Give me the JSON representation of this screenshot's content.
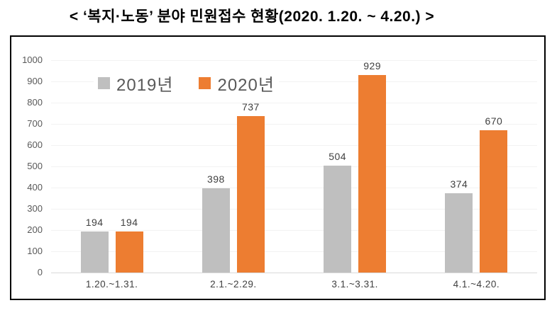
{
  "title": "< ‘복지·노동’ 분야 민원접수 현황(2020. 1.20. ~ 4.20.) >",
  "chart_data": {
    "type": "bar",
    "title": "‘복지·노동’ 분야 민원접수 현황 (2020. 1.20. ~ 4.20.)",
    "categories": [
      "1.20.~1.31.",
      "2.1.~2.29.",
      "3.1.~3.31.",
      "4.1.~4.20."
    ],
    "series": [
      {
        "name": "2019년",
        "color": "#bfbfbf",
        "values": [
          194,
          398,
          504,
          374
        ]
      },
      {
        "name": "2020년",
        "color": "#ed7d31",
        "values": [
          194,
          737,
          929,
          670
        ]
      }
    ],
    "xlabel": "",
    "ylabel": "",
    "ylim": [
      0,
      1000
    ],
    "ytick_step": 100,
    "ytick_labels": [
      "0",
      "100",
      "200",
      "300",
      "400",
      "500",
      "600",
      "700",
      "800",
      "900",
      "1000"
    ],
    "grid": true,
    "legend_position": "inside-top-left",
    "value_labels_shown": true
  },
  "colors": {
    "series_2019": "#bfbfbf",
    "series_2020": "#ed7d31",
    "gridline": "#f2f2f2",
    "axis_line": "#d9d9d9",
    "tick_label": "#595959",
    "value_label": "#404040",
    "frame_border": "#000000",
    "background": "#ffffff"
  }
}
